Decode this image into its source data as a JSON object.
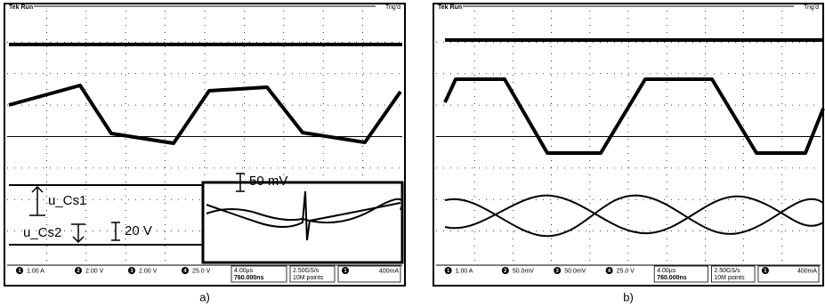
{
  "panels": [
    {
      "header": {
        "status": "Tek Run",
        "trigger": "Trig'd"
      },
      "annotations": {
        "cs1": "u_Cs1",
        "cs2": "u_Cs2",
        "scale_v": "20 V",
        "inset_scale": "50 mV"
      },
      "readout": {
        "ch1_num": "1",
        "ch1": "1.00 A",
        "ch2_num": "2",
        "ch2": "2.00 V",
        "ch3_num": "3",
        "ch3": "2.00 V",
        "ch4_num": "4",
        "ch4": "25.0 V",
        "timebase": "4.00µs",
        "delay": "760.000ns",
        "rate": "2.50GS/s",
        "points": "10M points",
        "trig_ch": "1",
        "trig_level": "400mA"
      },
      "caption": "a)"
    },
    {
      "header": {
        "status": "Tek Run",
        "trigger": "Trig'd"
      },
      "readout": {
        "ch1_num": "1",
        "ch1": "1.00 A",
        "ch2_num": "2",
        "ch2": "50.0mV",
        "ch3_num": "3",
        "ch3": "50.0mV",
        "ch4_num": "4",
        "ch4": "25.0 V",
        "timebase": "4.00µs",
        "delay": "760.000ns",
        "rate": "2.50GS/s",
        "points": "10M points",
        "trig_ch": "1",
        "trig_level": "400mA"
      },
      "caption": "b)"
    }
  ]
}
